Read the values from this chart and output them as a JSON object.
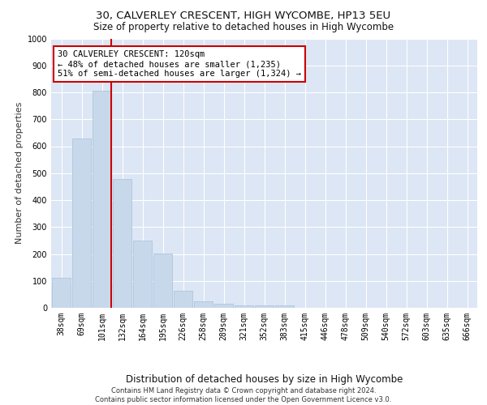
{
  "title1": "30, CALVERLEY CRESCENT, HIGH WYCOMBE, HP13 5EU",
  "title2": "Size of property relative to detached houses in High Wycombe",
  "xlabel": "Distribution of detached houses by size in High Wycombe",
  "ylabel": "Number of detached properties",
  "footer1": "Contains HM Land Registry data © Crown copyright and database right 2024.",
  "footer2": "Contains public sector information licensed under the Open Government Licence v3.0.",
  "categories": [
    "38sqm",
    "69sqm",
    "101sqm",
    "132sqm",
    "164sqm",
    "195sqm",
    "226sqm",
    "258sqm",
    "289sqm",
    "321sqm",
    "352sqm",
    "383sqm",
    "415sqm",
    "446sqm",
    "478sqm",
    "509sqm",
    "540sqm",
    "572sqm",
    "603sqm",
    "635sqm",
    "666sqm"
  ],
  "values": [
    110,
    630,
    805,
    478,
    250,
    203,
    62,
    25,
    15,
    10,
    10,
    10,
    0,
    0,
    0,
    0,
    0,
    0,
    0,
    0,
    0
  ],
  "bar_color": "#c8d8eb",
  "bar_edge_color": "#a8c0d8",
  "vline_x_index": 2,
  "vline_color": "#cc0000",
  "annotation_text": "30 CALVERLEY CRESCENT: 120sqm\n← 48% of detached houses are smaller (1,235)\n51% of semi-detached houses are larger (1,324) →",
  "annotation_box_color": "#ffffff",
  "annotation_box_edge_color": "#cc0000",
  "ylim": [
    0,
    1000
  ],
  "yticks": [
    0,
    100,
    200,
    300,
    400,
    500,
    600,
    700,
    800,
    900,
    1000
  ],
  "background_color": "#dce6f5",
  "plot_bg_color": "#dce6f5",
  "grid_color": "#ffffff",
  "title1_fontsize": 9.5,
  "title2_fontsize": 8.5,
  "xlabel_fontsize": 8.5,
  "ylabel_fontsize": 8,
  "tick_fontsize": 7,
  "annotation_fontsize": 7.5,
  "footer_fontsize": 6
}
